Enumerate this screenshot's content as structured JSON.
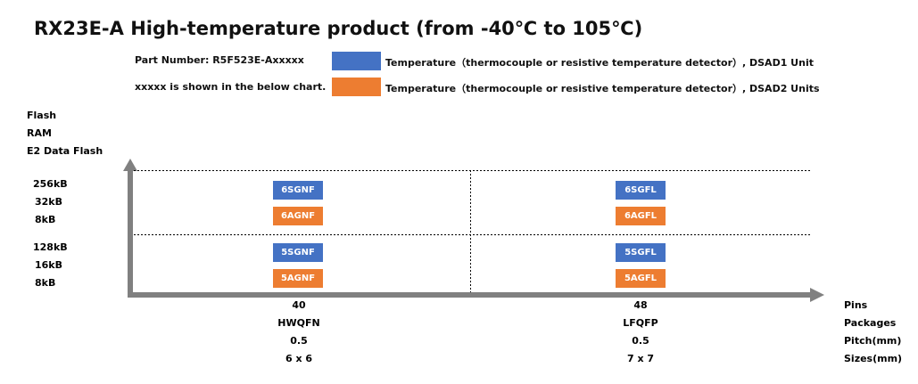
{
  "title": "RX23E-A High-temperature product (from -40℃ to 105℃)",
  "part_number": "Part Number: R5F523E-Axxxxx",
  "note": "xxxxx is shown in the below chart.",
  "colors": {
    "blue": "#4472C4",
    "orange": "#ED7D31",
    "axis": "#808080"
  },
  "legend": [
    {
      "label": "Temperature（thermocouple or resistive temperature  detector）, DSAD1 Unit",
      "color": "#4472C4"
    },
    {
      "label": "Temperature（thermocouple or resistive temperature  detector）, DSAD2 Units",
      "color": "#ED7D31"
    }
  ],
  "y_axis": {
    "labels": [
      "Flash",
      "RAM",
      "E2 Data Flash"
    ],
    "row_high": [
      "256kB",
      "32kB",
      "8kB"
    ],
    "row_low": [
      "128kB",
      "16kB",
      "8kB"
    ]
  },
  "x_axis": {
    "row_labels": [
      "Pins",
      "Packages",
      "Pitch(mm)",
      "Sizes(mm)"
    ],
    "columns": [
      {
        "pins": "40",
        "package": "HWQFN",
        "pitch": "0.5",
        "size": "6 x 6"
      },
      {
        "pins": "48",
        "package": "LFQFP",
        "pitch": "0.5",
        "size": "7 x 7"
      }
    ]
  },
  "cells": {
    "high": [
      {
        "blue": "6SGNF",
        "orange": "6AGNF"
      },
      {
        "blue": "6SGFL",
        "orange": "6AGFL"
      }
    ],
    "low": [
      {
        "blue": "5SGNF",
        "orange": "5AGNF"
      },
      {
        "blue": "5SGFL",
        "orange": "5AGFL"
      }
    ]
  }
}
